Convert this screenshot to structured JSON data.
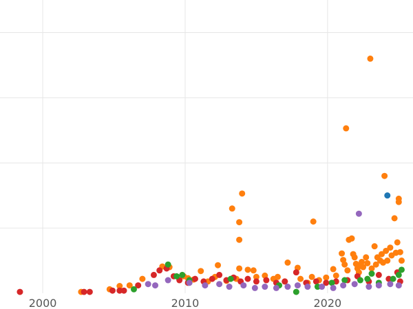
{
  "chart_data": {
    "type": "scatter",
    "xlim": [
      1997,
      2026
    ],
    "ylim": [
      0,
      4.5
    ],
    "x_ticks": [
      2000,
      2010,
      2020
    ],
    "x_tick_labels": [
      "2000",
      "2010",
      "2020"
    ],
    "y_gridlines": [
      1,
      2,
      3,
      4
    ],
    "grid": true,
    "series": [
      {
        "color": "#ff7f0e",
        "points": [
          [
            2002.7,
            0.02
          ],
          [
            2004.7,
            0.06
          ],
          [
            2005.4,
            0.11
          ],
          [
            2006.1,
            0.12
          ],
          [
            2007.0,
            0.22
          ],
          [
            2008.4,
            0.41
          ],
          [
            2008.9,
            0.4
          ],
          [
            2009.9,
            0.26
          ],
          [
            2010.2,
            0.23
          ],
          [
            2010.6,
            0.21
          ],
          [
            2011.1,
            0.34
          ],
          [
            2011.6,
            0.18
          ],
          [
            2012.1,
            0.25
          ],
          [
            2012.3,
            0.43
          ],
          [
            2012.9,
            0.19
          ],
          [
            2013.3,
            1.3
          ],
          [
            2013.6,
            0.22
          ],
          [
            2013.8,
            0.38
          ],
          [
            2013.8,
            0.82
          ],
          [
            2013.8,
            1.09
          ],
          [
            2014.0,
            1.53
          ],
          [
            2014.4,
            0.36
          ],
          [
            2014.8,
            0.35
          ],
          [
            2015.0,
            0.25
          ],
          [
            2015.6,
            0.27
          ],
          [
            2016.2,
            0.22
          ],
          [
            2016.5,
            0.25
          ],
          [
            2017.0,
            0.18
          ],
          [
            2017.2,
            0.47
          ],
          [
            2017.9,
            0.39
          ],
          [
            2018.1,
            0.22
          ],
          [
            2018.6,
            0.16
          ],
          [
            2018.9,
            0.25
          ],
          [
            2019.0,
            1.1
          ],
          [
            2019.4,
            0.2
          ],
          [
            2019.9,
            0.24
          ],
          [
            2020.4,
            0.37
          ],
          [
            2020.6,
            0.27
          ],
          [
            2021.0,
            0.61
          ],
          [
            2021.1,
            0.51
          ],
          [
            2021.2,
            0.44
          ],
          [
            2021.3,
            2.53
          ],
          [
            2021.4,
            0.35
          ],
          [
            2021.5,
            0.82
          ],
          [
            2021.7,
            0.84
          ],
          [
            2021.8,
            0.6
          ],
          [
            2021.9,
            0.55
          ],
          [
            2022.0,
            0.45
          ],
          [
            2022.1,
            0.38
          ],
          [
            2022.2,
            0.32
          ],
          [
            2022.4,
            0.48
          ],
          [
            2022.5,
            0.4
          ],
          [
            2022.7,
            0.55
          ],
          [
            2022.8,
            0.46
          ],
          [
            2023.0,
            3.6
          ],
          [
            2023.1,
            0.38
          ],
          [
            2023.3,
            0.72
          ],
          [
            2023.4,
            0.44
          ],
          [
            2023.5,
            0.55
          ],
          [
            2023.7,
            0.5
          ],
          [
            2023.8,
            0.6
          ],
          [
            2024.0,
            1.8
          ],
          [
            2024.1,
            0.65
          ],
          [
            2024.2,
            0.5
          ],
          [
            2024.4,
            0.7
          ],
          [
            2024.5,
            0.58
          ],
          [
            2024.7,
            1.15
          ],
          [
            2024.8,
            0.62
          ],
          [
            2024.9,
            0.78
          ],
          [
            2025.0,
            1.4
          ],
          [
            2025.0,
            1.45
          ],
          [
            2025.1,
            0.63
          ],
          [
            2025.2,
            0.5
          ],
          [
            2022.3,
            0.42
          ],
          [
            2023.9,
            0.47
          ]
        ]
      },
      {
        "color": "#d62728",
        "points": [
          [
            1998.4,
            0.02
          ],
          [
            2002.9,
            0.02
          ],
          [
            2003.3,
            0.02
          ],
          [
            2004.9,
            0.04
          ],
          [
            2005.4,
            0.04
          ],
          [
            2005.7,
            0.04
          ],
          [
            2006.7,
            0.12
          ],
          [
            2007.8,
            0.28
          ],
          [
            2008.2,
            0.35
          ],
          [
            2008.7,
            0.38
          ],
          [
            2009.2,
            0.26
          ],
          [
            2009.6,
            0.2
          ],
          [
            2010.2,
            0.16
          ],
          [
            2010.7,
            0.22
          ],
          [
            2011.3,
            0.18
          ],
          [
            2011.9,
            0.22
          ],
          [
            2012.4,
            0.28
          ],
          [
            2012.9,
            0.2
          ],
          [
            2013.4,
            0.24
          ],
          [
            2013.9,
            0.18
          ],
          [
            2014.4,
            0.22
          ],
          [
            2015.0,
            0.18
          ],
          [
            2015.7,
            0.2
          ],
          [
            2016.4,
            0.16
          ],
          [
            2017.0,
            0.18
          ],
          [
            2017.8,
            0.32
          ],
          [
            2018.5,
            0.16
          ],
          [
            2019.2,
            0.18
          ],
          [
            2019.9,
            0.16
          ],
          [
            2020.6,
            0.18
          ],
          [
            2021.4,
            0.2
          ],
          [
            2022.1,
            0.26
          ],
          [
            2022.9,
            0.18
          ],
          [
            2023.6,
            0.28
          ],
          [
            2024.3,
            0.22
          ],
          [
            2024.9,
            0.32
          ],
          [
            2025.1,
            0.18
          ]
        ]
      },
      {
        "color": "#2ca02c",
        "points": [
          [
            2006.4,
            0.06
          ],
          [
            2008.8,
            0.44
          ],
          [
            2009.4,
            0.26
          ],
          [
            2009.8,
            0.28
          ],
          [
            2010.3,
            0.2
          ],
          [
            2013.2,
            0.22
          ],
          [
            2016.6,
            0.12
          ],
          [
            2017.8,
            0.02
          ],
          [
            2019.3,
            0.1
          ],
          [
            2020.3,
            0.16
          ],
          [
            2021.2,
            0.2
          ],
          [
            2022.8,
            0.22
          ],
          [
            2023.1,
            0.3
          ],
          [
            2023.6,
            0.16
          ],
          [
            2024.6,
            0.22
          ],
          [
            2025.0,
            0.28
          ],
          [
            2025.2,
            0.36
          ],
          [
            2022.3,
            0.2
          ]
        ]
      },
      {
        "color": "#9467bd",
        "points": [
          [
            2007.4,
            0.14
          ],
          [
            2007.9,
            0.12
          ],
          [
            2008.8,
            0.2
          ],
          [
            2010.3,
            0.16
          ],
          [
            2011.4,
            0.12
          ],
          [
            2012.4,
            0.14
          ],
          [
            2013.1,
            0.1
          ],
          [
            2014.1,
            0.12
          ],
          [
            2014.9,
            0.08
          ],
          [
            2015.6,
            0.1
          ],
          [
            2016.4,
            0.08
          ],
          [
            2017.2,
            0.1
          ],
          [
            2017.9,
            0.12
          ],
          [
            2018.6,
            0.1
          ],
          [
            2019.6,
            0.1
          ],
          [
            2020.4,
            0.08
          ],
          [
            2021.1,
            0.12
          ],
          [
            2021.9,
            0.14
          ],
          [
            2022.2,
            1.22
          ],
          [
            2022.9,
            0.1
          ],
          [
            2023.6,
            0.12
          ],
          [
            2024.4,
            0.14
          ],
          [
            2025.0,
            0.12
          ]
        ]
      },
      {
        "color": "#1f77b4",
        "points": [
          [
            2024.2,
            1.5
          ]
        ]
      }
    ]
  }
}
